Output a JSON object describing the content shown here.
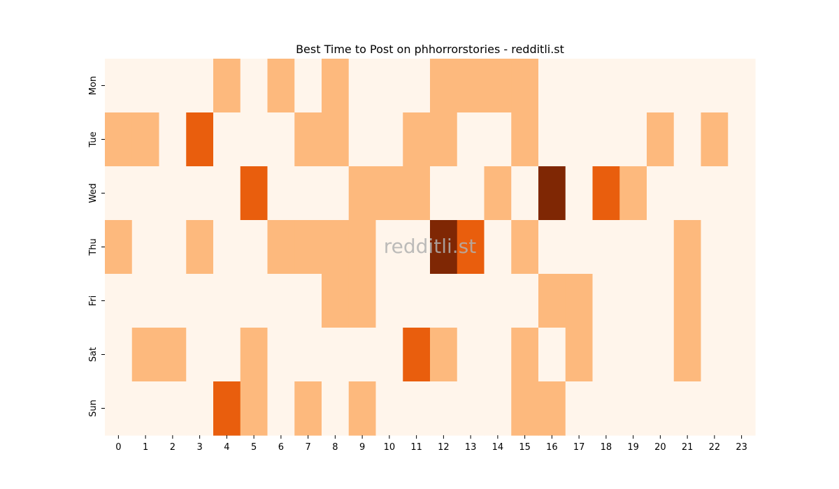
{
  "chart_data": {
    "type": "heatmap",
    "title": "Best Time to Post on phhorrorstories - redditli.st",
    "xlabel": "",
    "ylabel": "",
    "x_categories": [
      "0",
      "1",
      "2",
      "3",
      "4",
      "5",
      "6",
      "7",
      "8",
      "9",
      "10",
      "11",
      "12",
      "13",
      "14",
      "15",
      "16",
      "17",
      "18",
      "19",
      "20",
      "21",
      "22",
      "23"
    ],
    "y_categories": [
      "Mon",
      "Tue",
      "Wed",
      "Thu",
      "Fri",
      "Sat",
      "Sun"
    ],
    "values": [
      [
        0,
        0,
        0,
        0,
        1,
        0,
        1,
        0,
        1,
        0,
        0,
        0,
        1,
        1,
        1,
        1,
        0,
        0,
        0,
        0,
        0,
        0,
        0,
        0
      ],
      [
        1,
        1,
        0,
        2,
        0,
        0,
        0,
        1,
        1,
        0,
        0,
        1,
        1,
        0,
        0,
        1,
        0,
        0,
        0,
        0,
        1,
        0,
        1,
        0
      ],
      [
        0,
        0,
        0,
        0,
        0,
        2,
        0,
        0,
        0,
        1,
        1,
        1,
        0,
        0,
        1,
        0,
        3,
        0,
        2,
        1,
        0,
        0,
        0,
        0
      ],
      [
        1,
        0,
        0,
        1,
        0,
        0,
        1,
        1,
        1,
        1,
        0,
        0,
        3,
        2,
        0,
        1,
        0,
        0,
        0,
        0,
        0,
        1,
        0,
        0
      ],
      [
        0,
        0,
        0,
        0,
        0,
        0,
        0,
        0,
        1,
        1,
        0,
        0,
        0,
        0,
        0,
        0,
        1,
        1,
        0,
        0,
        0,
        1,
        0,
        0
      ],
      [
        0,
        1,
        1,
        0,
        0,
        1,
        0,
        0,
        0,
        0,
        0,
        2,
        1,
        0,
        0,
        1,
        0,
        1,
        0,
        0,
        0,
        1,
        0,
        0
      ],
      [
        0,
        0,
        0,
        0,
        2,
        1,
        0,
        1,
        0,
        1,
        0,
        0,
        0,
        0,
        0,
        1,
        1,
        0,
        0,
        0,
        0,
        0,
        0,
        0
      ]
    ],
    "colorscale": [
      "#fff5eb",
      "#fdb97d",
      "#e95e0d",
      "#7f2704"
    ],
    "grid": false,
    "legend": "none",
    "watermark": "redditli.st"
  }
}
